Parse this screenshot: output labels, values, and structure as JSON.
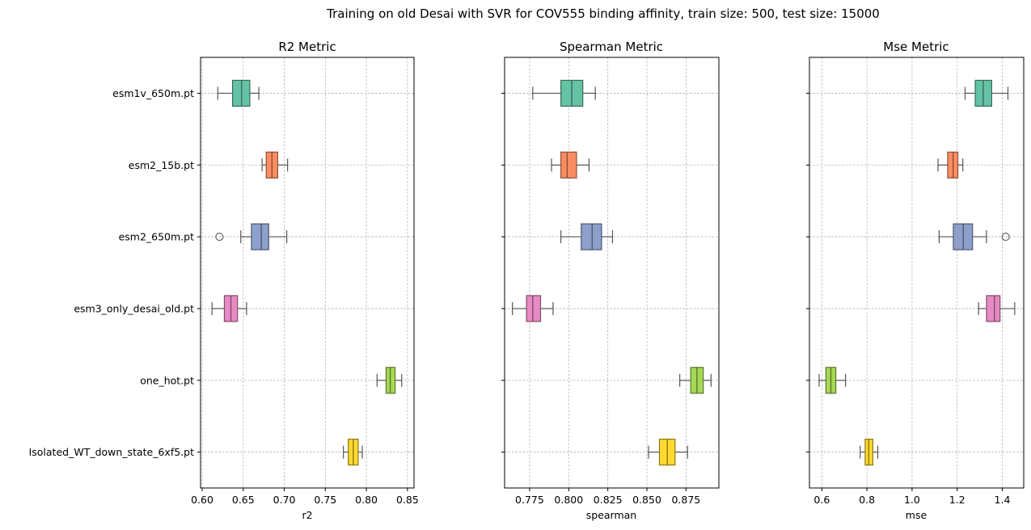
{
  "chart_data": {
    "type": "box",
    "title": "Training on old Desai with SVR for COV555 binding affinity, train size: 500, test size: 15000",
    "categories": [
      "esm1v_650m.pt",
      "esm2_15b.pt",
      "esm2_650m.pt",
      "esm3_only_desai_old.pt",
      "one_hot.pt",
      "Isolated_WT_down_state_6xf5.pt"
    ],
    "colors": [
      "#66c2a5",
      "#fc8d62",
      "#8da0cb",
      "#e78ac3",
      "#a6d854",
      "#ffd92f"
    ],
    "grid": true,
    "panels": [
      {
        "title": "R2 Metric",
        "xlabel": "r2",
        "xlim": [
          0.598,
          0.858
        ],
        "ticks": [
          0.6,
          0.65,
          0.7,
          0.75,
          0.8,
          0.85
        ],
        "tick_labels": [
          "0.60",
          "0.65",
          "0.70",
          "0.75",
          "0.80",
          "0.85"
        ],
        "boxes": [
          {
            "min": 0.619,
            "q1": 0.637,
            "median": 0.648,
            "q3": 0.658,
            "max": 0.669,
            "outliers": []
          },
          {
            "min": 0.673,
            "q1": 0.678,
            "median": 0.685,
            "q3": 0.692,
            "max": 0.704,
            "outliers": []
          },
          {
            "min": 0.647,
            "q1": 0.66,
            "median": 0.672,
            "q3": 0.681,
            "max": 0.703,
            "outliers": [
              0.621
            ]
          },
          {
            "min": 0.612,
            "q1": 0.627,
            "median": 0.635,
            "q3": 0.643,
            "max": 0.654,
            "outliers": []
          },
          {
            "min": 0.813,
            "q1": 0.824,
            "median": 0.829,
            "q3": 0.835,
            "max": 0.843,
            "outliers": []
          },
          {
            "min": 0.772,
            "q1": 0.778,
            "median": 0.784,
            "q3": 0.79,
            "max": 0.795,
            "outliers": []
          }
        ]
      },
      {
        "title": "Spearman Metric",
        "xlabel": "spearman",
        "xlim": [
          0.759,
          0.896
        ],
        "ticks": [
          0.775,
          0.8,
          0.825,
          0.85,
          0.875
        ],
        "tick_labels": [
          "0.775",
          "0.800",
          "0.825",
          "0.850",
          "0.875"
        ],
        "boxes": [
          {
            "min": 0.777,
            "q1": 0.795,
            "median": 0.802,
            "q3": 0.809,
            "max": 0.817,
            "outliers": []
          },
          {
            "min": 0.789,
            "q1": 0.795,
            "median": 0.799,
            "q3": 0.805,
            "max": 0.813,
            "outliers": []
          },
          {
            "min": 0.795,
            "q1": 0.808,
            "median": 0.815,
            "q3": 0.821,
            "max": 0.828,
            "outliers": []
          },
          {
            "min": 0.764,
            "q1": 0.773,
            "median": 0.777,
            "q3": 0.782,
            "max": 0.79,
            "outliers": []
          },
          {
            "min": 0.871,
            "q1": 0.878,
            "median": 0.882,
            "q3": 0.886,
            "max": 0.891,
            "outliers": []
          },
          {
            "min": 0.851,
            "q1": 0.858,
            "median": 0.863,
            "q3": 0.868,
            "max": 0.876,
            "outliers": []
          }
        ]
      },
      {
        "title": "Mse Metric",
        "xlabel": "mse",
        "xlim": [
          0.545,
          1.495
        ],
        "ticks": [
          0.6,
          0.8,
          1.0,
          1.2,
          1.4
        ],
        "tick_labels": [
          "0.6",
          "0.8",
          "1.0",
          "1.2",
          "1.4"
        ],
        "boxes": [
          {
            "min": 1.235,
            "q1": 1.28,
            "median": 1.315,
            "q3": 1.353,
            "max": 1.425,
            "outliers": []
          },
          {
            "min": 1.115,
            "q1": 1.158,
            "median": 1.182,
            "q3": 1.203,
            "max": 1.225,
            "outliers": []
          },
          {
            "min": 1.12,
            "q1": 1.183,
            "median": 1.227,
            "q3": 1.268,
            "max": 1.33,
            "outliers": [
              1.415
            ]
          },
          {
            "min": 1.295,
            "q1": 1.33,
            "median": 1.365,
            "q3": 1.39,
            "max": 1.455,
            "outliers": []
          },
          {
            "min": 0.588,
            "q1": 0.618,
            "median": 0.64,
            "q3": 0.662,
            "max": 0.705,
            "outliers": []
          },
          {
            "min": 0.77,
            "q1": 0.792,
            "median": 0.808,
            "q3": 0.826,
            "max": 0.848,
            "outliers": []
          }
        ]
      }
    ]
  }
}
